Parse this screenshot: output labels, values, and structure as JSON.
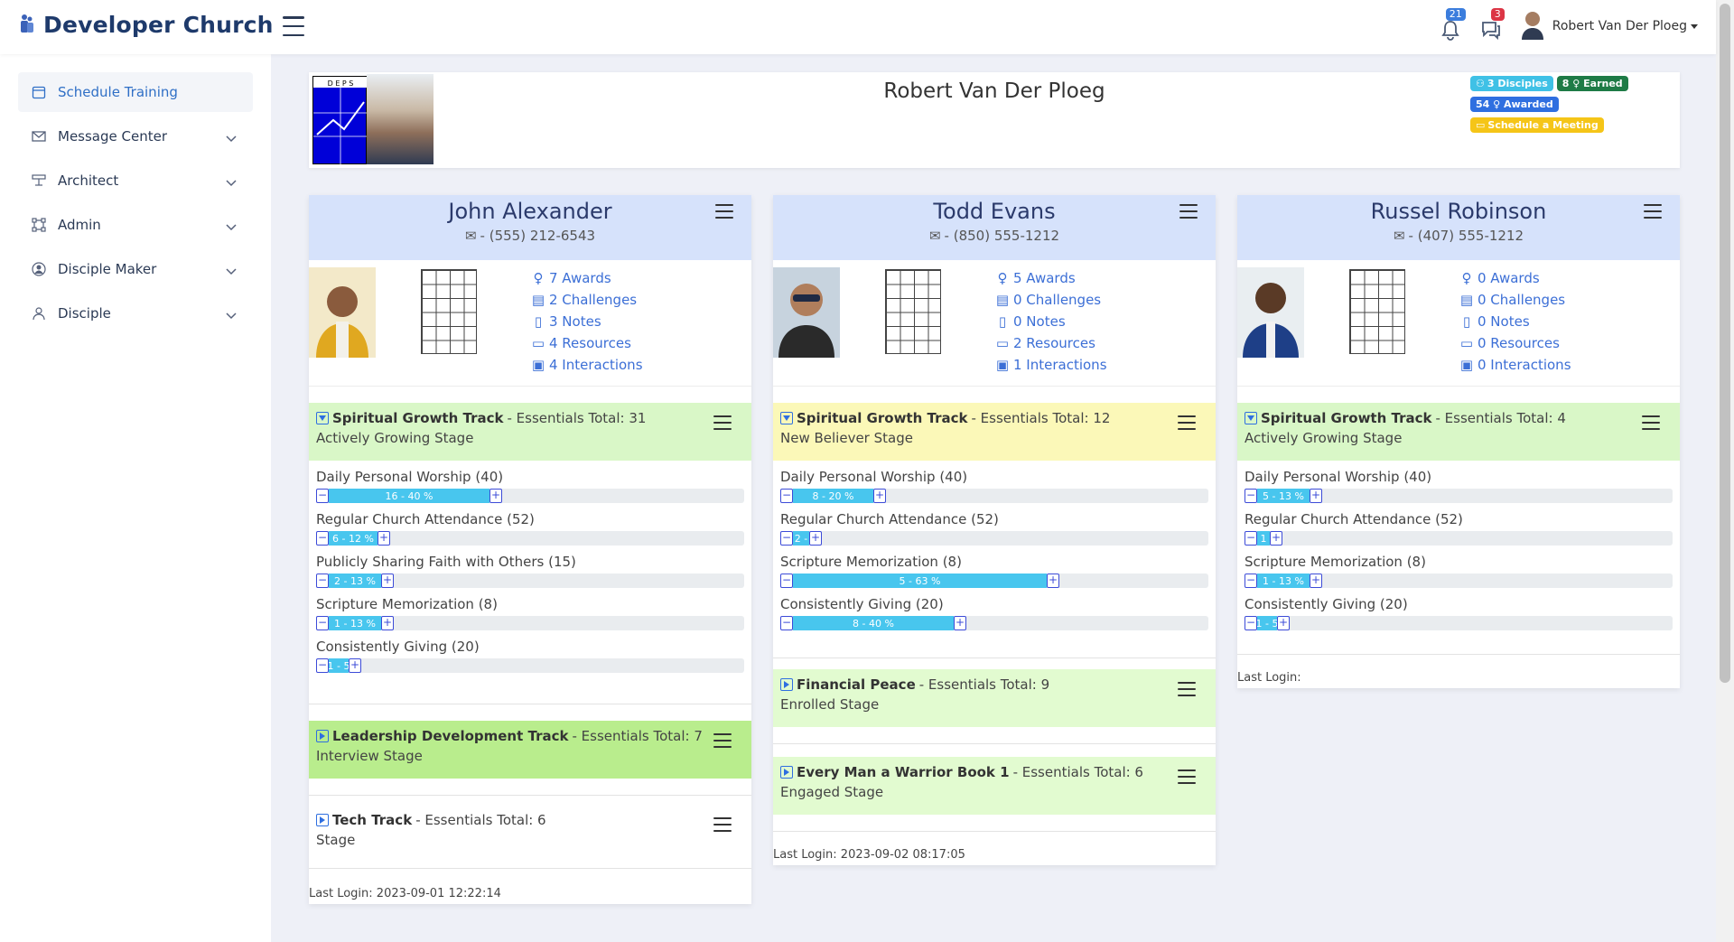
{
  "header": {
    "brand": "Developer Church",
    "notifications_count": "21",
    "messages_count": "3",
    "user_name": "Robert Van Der Ploeg"
  },
  "sidebar": {
    "items": [
      {
        "label": "Schedule Training",
        "icon": "calendar-icon"
      },
      {
        "label": "Message Center",
        "icon": "envelope-icon"
      },
      {
        "label": "Architect",
        "icon": "sliders-icon"
      },
      {
        "label": "Admin",
        "icon": "nodes-icon"
      },
      {
        "label": "Disciple Maker",
        "icon": "person-circle-icon"
      },
      {
        "label": "Disciple",
        "icon": "person-icon"
      }
    ]
  },
  "profile": {
    "name": "Robert Van Der Ploeg",
    "logo_text": "D E P S",
    "disciples_badge": "3 Disciples",
    "earned_badge": "8 ♀ Earned",
    "awarded_badge": "54 ♀ Awarded",
    "meeting_badge": "Schedule a Meeting"
  },
  "disciples": [
    {
      "name": "John Alexander",
      "phone": "- (555) 212-6543",
      "stats": {
        "awards": "7 Awards",
        "challenges": "2 Challenges",
        "notes": "3 Notes",
        "resources": "4 Resources",
        "interactions": "4 Interactions"
      },
      "tracks": [
        {
          "title": "Spiritual Growth Track",
          "total": " - Essentials Total: 31",
          "stage": "Actively Growing Stage",
          "metrics": [
            {
              "label": "Daily Personal Worship (40)",
              "text": "16 - 40 %",
              "pct": 40
            },
            {
              "label": "Regular Church Attendance (52)",
              "text": "6 - 12 %",
              "pct": 12
            },
            {
              "label": "Publicly Sharing Faith with Others (15)",
              "text": "2 - 13 %",
              "pct": 13
            },
            {
              "label": "Scripture Memorization (8)",
              "text": "1 - 13 %",
              "pct": 13
            },
            {
              "label": "Consistently Giving (20)",
              "text": "1 - 5",
              "pct": 5
            }
          ]
        },
        {
          "title": "Leadership Development Track",
          "total": " - Essentials Total: 7",
          "stage": "Interview Stage"
        },
        {
          "title": "Tech Track",
          "total": " - Essentials Total: 6",
          "stage": "Stage"
        }
      ],
      "last_login": "Last Login: 2023-09-01 12:22:14"
    },
    {
      "name": "Todd Evans",
      "phone": "- (850) 555-1212",
      "stats": {
        "awards": "5 Awards",
        "challenges": "0 Challenges",
        "notes": "0 Notes",
        "resources": "2 Resources",
        "interactions": "1 Interactions"
      },
      "tracks": [
        {
          "title": "Spiritual Growth Track",
          "total": " - Essentials Total: 12",
          "stage": "New Believer Stage",
          "metrics": [
            {
              "label": "Daily Personal Worship (40)",
              "text": "8 - 20 %",
              "pct": 20
            },
            {
              "label": "Regular Church Attendance (52)",
              "text": "2 -",
              "pct": 4
            },
            {
              "label": "Scripture Memorization (8)",
              "text": "5 - 63 %",
              "pct": 63
            },
            {
              "label": "Consistently Giving (20)",
              "text": "8 - 40 %",
              "pct": 40
            }
          ]
        },
        {
          "title": "Financial Peace",
          "total": " - Essentials Total: 9",
          "stage": "Enrolled Stage"
        },
        {
          "title": "Every Man a Warrior Book 1",
          "total": " - Essentials Total: 6",
          "stage": "Engaged Stage"
        }
      ],
      "last_login": "Last Login: 2023-09-02 08:17:05"
    },
    {
      "name": "Russel Robinson",
      "phone": "- (407) 555-1212",
      "stats": {
        "awards": "0 Awards",
        "challenges": "0 Challenges",
        "notes": "0 Notes",
        "resources": "0 Resources",
        "interactions": "0 Interactions"
      },
      "tracks": [
        {
          "title": "Spiritual Growth Track",
          "total": " - Essentials Total: 4",
          "stage": "Actively Growing Stage",
          "metrics": [
            {
              "label": "Daily Personal Worship (40)",
              "text": "5 - 13 %",
              "pct": 13
            },
            {
              "label": "Regular Church Attendance (52)",
              "text": "1",
              "pct": 2
            },
            {
              "label": "Scripture Memorization (8)",
              "text": "1 - 13 %",
              "pct": 13
            },
            {
              "label": "Consistently Giving (20)",
              "text": "1 - 5",
              "pct": 5
            }
          ]
        }
      ],
      "last_login": "Last Login:"
    }
  ]
}
